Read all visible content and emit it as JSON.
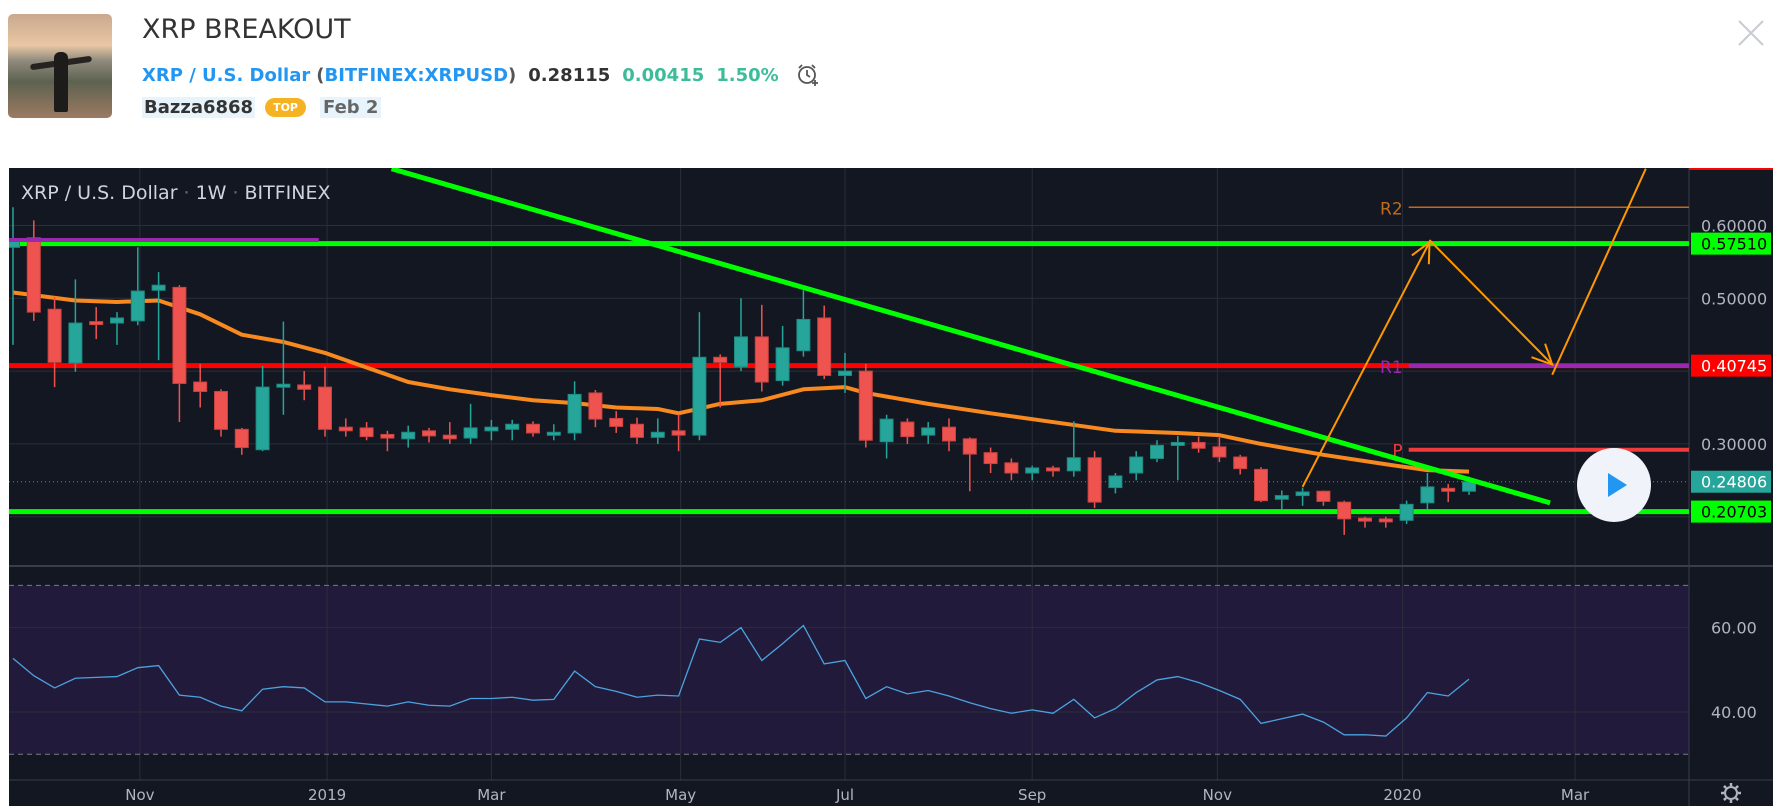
{
  "header": {
    "title": "XRP BREAKOUT",
    "symbol_name": "XRP / U.S. Dollar",
    "paren_open": "(",
    "symbol_code": "BITFINEX:XRPUSD",
    "paren_close": ")",
    "last_price": "0.28115",
    "change": "0.00415",
    "change_pct": "1.50%",
    "author": "Bazza6868",
    "author_badge": "TOP",
    "date": "Feb 2"
  },
  "chart": {
    "legend_symbol": "XRP / U.S. Dollar",
    "legend_sep": "·",
    "legend_interval": "1W",
    "legend_exchange": "BITFINEX"
  },
  "colors": {
    "up": "#26a69a",
    "down": "#ef5350",
    "ema": "#f7891f",
    "rsi": "#4aa3df",
    "green_line": "#00ff00",
    "red_line": "#ff0000",
    "arrow": "#ff9800"
  },
  "chart_data": {
    "type": "candlestick",
    "title": "XRP / U.S. Dollar · 1W · BITFINEX",
    "ylim": [
      0.13,
      0.68
    ],
    "price_ticks": [
      "0.60000",
      "0.50000",
      "0.30000"
    ],
    "price_tick_values": [
      0.6,
      0.5,
      0.3
    ],
    "grid_prices": [
      0.7,
      0.6,
      0.5,
      0.4,
      0.3,
      0.2
    ],
    "price_badges": [
      {
        "label": "0.57510",
        "value": 0.5751,
        "bg": "#00ff00",
        "fg": "#000000"
      },
      {
        "label": "0.40745",
        "value": 0.40745,
        "bg": "#ff0000",
        "fg": "#ffffff"
      },
      {
        "label": "0.24806",
        "value": 0.24806,
        "bg": "#26a69a",
        "fg": "#ffffff"
      },
      {
        "label": "0.20703",
        "value": 0.20703,
        "bg": "#00ff00",
        "fg": "#000000"
      }
    ],
    "time_ticks": [
      {
        "label": "Nov",
        "week": 6.1
      },
      {
        "label": "2019",
        "week": 15.1
      },
      {
        "label": "Mar",
        "week": 23.0
      },
      {
        "label": "May",
        "week": 32.1
      },
      {
        "label": "Jul",
        "week": 40.0
      },
      {
        "label": "Sep",
        "week": 49.0
      },
      {
        "label": "Nov",
        "week": 57.9
      },
      {
        "label": "2020",
        "week": 66.8
      },
      {
        "label": "Mar",
        "week": 75.1
      }
    ],
    "candles_ohlc": [
      [
        0.57,
        0.625,
        0.436,
        0.58
      ],
      [
        0.583,
        0.607,
        0.469,
        0.481
      ],
      [
        0.485,
        0.502,
        0.378,
        0.412
      ],
      [
        0.411,
        0.526,
        0.399,
        0.466
      ],
      [
        0.468,
        0.488,
        0.444,
        0.465
      ],
      [
        0.466,
        0.481,
        0.436,
        0.473
      ],
      [
        0.469,
        0.57,
        0.463,
        0.51
      ],
      [
        0.511,
        0.536,
        0.415,
        0.518
      ],
      [
        0.515,
        0.518,
        0.33,
        0.383
      ],
      [
        0.385,
        0.41,
        0.35,
        0.372
      ],
      [
        0.372,
        0.375,
        0.31,
        0.32
      ],
      [
        0.32,
        0.322,
        0.285,
        0.295
      ],
      [
        0.292,
        0.407,
        0.29,
        0.378
      ],
      [
        0.378,
        0.468,
        0.34,
        0.382
      ],
      [
        0.381,
        0.4,
        0.36,
        0.375
      ],
      [
        0.378,
        0.406,
        0.31,
        0.32
      ],
      [
        0.323,
        0.335,
        0.31,
        0.318
      ],
      [
        0.322,
        0.33,
        0.305,
        0.31
      ],
      [
        0.313,
        0.318,
        0.29,
        0.308
      ],
      [
        0.307,
        0.325,
        0.295,
        0.316
      ],
      [
        0.318,
        0.322,
        0.302,
        0.311
      ],
      [
        0.312,
        0.33,
        0.3,
        0.307
      ],
      [
        0.308,
        0.355,
        0.3,
        0.322
      ],
      [
        0.318,
        0.333,
        0.305,
        0.323
      ],
      [
        0.32,
        0.333,
        0.305,
        0.327
      ],
      [
        0.327,
        0.331,
        0.31,
        0.315
      ],
      [
        0.313,
        0.327,
        0.305,
        0.316
      ],
      [
        0.315,
        0.386,
        0.305,
        0.368
      ],
      [
        0.37,
        0.374,
        0.323,
        0.334
      ],
      [
        0.335,
        0.345,
        0.315,
        0.324
      ],
      [
        0.327,
        0.336,
        0.3,
        0.309
      ],
      [
        0.309,
        0.335,
        0.3,
        0.316
      ],
      [
        0.318,
        0.341,
        0.29,
        0.312
      ],
      [
        0.312,
        0.481,
        0.305,
        0.419
      ],
      [
        0.419,
        0.423,
        0.35,
        0.412
      ],
      [
        0.406,
        0.5,
        0.4,
        0.447
      ],
      [
        0.447,
        0.491,
        0.372,
        0.385
      ],
      [
        0.387,
        0.462,
        0.38,
        0.432
      ],
      [
        0.428,
        0.511,
        0.42,
        0.471
      ],
      [
        0.473,
        0.49,
        0.389,
        0.394
      ],
      [
        0.394,
        0.425,
        0.37,
        0.4
      ],
      [
        0.4,
        0.41,
        0.295,
        0.305
      ],
      [
        0.303,
        0.34,
        0.28,
        0.334
      ],
      [
        0.33,
        0.335,
        0.3,
        0.31
      ],
      [
        0.312,
        0.33,
        0.3,
        0.322
      ],
      [
        0.323,
        0.335,
        0.29,
        0.304
      ],
      [
        0.307,
        0.309,
        0.235,
        0.286
      ],
      [
        0.288,
        0.295,
        0.26,
        0.273
      ],
      [
        0.274,
        0.28,
        0.25,
        0.26
      ],
      [
        0.26,
        0.27,
        0.25,
        0.267
      ],
      [
        0.267,
        0.27,
        0.255,
        0.264
      ],
      [
        0.263,
        0.331,
        0.255,
        0.281
      ],
      [
        0.281,
        0.29,
        0.212,
        0.22
      ],
      [
        0.24,
        0.26,
        0.232,
        0.256
      ],
      [
        0.26,
        0.29,
        0.25,
        0.282
      ],
      [
        0.28,
        0.305,
        0.275,
        0.298
      ],
      [
        0.298,
        0.311,
        0.25,
        0.302
      ],
      [
        0.302,
        0.31,
        0.288,
        0.294
      ],
      [
        0.296,
        0.311,
        0.275,
        0.282
      ],
      [
        0.282,
        0.285,
        0.258,
        0.266
      ],
      [
        0.265,
        0.268,
        0.22,
        0.222
      ],
      [
        0.224,
        0.236,
        0.21,
        0.229
      ],
      [
        0.229,
        0.24,
        0.215,
        0.234
      ],
      [
        0.235,
        0.236,
        0.215,
        0.221
      ],
      [
        0.22,
        0.222,
        0.175,
        0.197
      ],
      [
        0.198,
        0.2,
        0.185,
        0.194
      ],
      [
        0.197,
        0.2,
        0.185,
        0.193
      ],
      [
        0.195,
        0.222,
        0.19,
        0.217
      ],
      [
        0.219,
        0.26,
        0.21,
        0.241
      ],
      [
        0.239,
        0.245,
        0.22,
        0.235
      ],
      [
        0.235,
        0.255,
        0.23,
        0.248
      ]
    ],
    "ema": [
      [
        0,
        0.508
      ],
      [
        3,
        0.497
      ],
      [
        5,
        0.495
      ],
      [
        7,
        0.497
      ],
      [
        9,
        0.478
      ],
      [
        11,
        0.45
      ],
      [
        13,
        0.44
      ],
      [
        15,
        0.425
      ],
      [
        17,
        0.405
      ],
      [
        19,
        0.385
      ],
      [
        21,
        0.375
      ],
      [
        23,
        0.367
      ],
      [
        25,
        0.36
      ],
      [
        27,
        0.356
      ],
      [
        29,
        0.35
      ],
      [
        31,
        0.348
      ],
      [
        32,
        0.342
      ],
      [
        34,
        0.355
      ],
      [
        36,
        0.36
      ],
      [
        38,
        0.375
      ],
      [
        40,
        0.378
      ],
      [
        41,
        0.37
      ],
      [
        44,
        0.355
      ],
      [
        47,
        0.342
      ],
      [
        50,
        0.33
      ],
      [
        53,
        0.318
      ],
      [
        56,
        0.315
      ],
      [
        58,
        0.312
      ],
      [
        60,
        0.3
      ],
      [
        63,
        0.285
      ],
      [
        66,
        0.272
      ],
      [
        68,
        0.264
      ],
      [
        70,
        0.262
      ]
    ],
    "rsi": {
      "ticks": [
        "60.00",
        "40.00"
      ],
      "tick_values": [
        60,
        40
      ],
      "bands": [
        70,
        30
      ],
      "values": [
        52.7,
        48.6,
        45.7,
        48,
        48.2,
        48.4,
        50.5,
        51,
        44,
        43.5,
        41.4,
        40.3,
        45.4,
        46,
        45.7,
        42.4,
        42.4,
        41.9,
        41.4,
        42.4,
        41.6,
        41.4,
        43.2,
        43.2,
        43.5,
        42.8,
        43,
        49.7,
        46,
        44.9,
        43.5,
        44,
        43.8,
        57.3,
        56.5,
        60,
        52.2,
        56.2,
        60.5,
        51.4,
        52.2,
        43.2,
        46,
        44.3,
        45.1,
        43.8,
        42.2,
        40.8,
        39.7,
        40.5,
        39.7,
        43,
        38.6,
        40.8,
        44.6,
        47.6,
        48.4,
        47,
        45.1,
        43,
        37.3,
        38.4,
        39.5,
        37.6,
        34.6,
        34.6,
        34.3,
        38.6,
        44.6,
        43.8,
        47.8
      ]
    },
    "drawings": {
      "hlines": [
        {
          "name": "resistance-line-green",
          "value": 0.5751,
          "color": "#00ff00"
        },
        {
          "name": "resistance-line-red",
          "value": 0.40745,
          "color": "#ff0000"
        },
        {
          "name": "support-line-green",
          "value": 0.20703,
          "color": "#00ff00"
        }
      ],
      "segments": [
        {
          "name": "purple-level-line",
          "from": [
            -0.5,
            0.58
          ],
          "to": [
            14.7,
            0.58
          ],
          "color": "#9c27b0",
          "width": 4
        },
        {
          "name": "downtrend-line",
          "from": [
            18.2,
            0.678
          ],
          "to": [
            73.9,
            0.219
          ],
          "color": "#00ff00",
          "width": 5
        }
      ],
      "pivots": [
        {
          "label": "R2",
          "value": 0.625,
          "start": 67.1,
          "color": "#c06a1c",
          "width": 1.5
        },
        {
          "label": "R1",
          "value": 0.407,
          "start": 67.1,
          "color": "#9c27b0",
          "width": 4
        },
        {
          "label": "P",
          "value": 0.292,
          "start": 67.1,
          "color": "#ef3b3b",
          "width": 4
        }
      ],
      "arrows": [
        {
          "from": [
            62.0,
            0.241
          ],
          "to": [
            68.1,
            0.577
          ]
        },
        {
          "from": [
            68.1,
            0.58
          ],
          "to": [
            74.0,
            0.409
          ]
        },
        {
          "from": [
            74.0,
            0.395
          ],
          "to": [
            78.5,
            0.678
          ],
          "head": false
        }
      ]
    }
  }
}
